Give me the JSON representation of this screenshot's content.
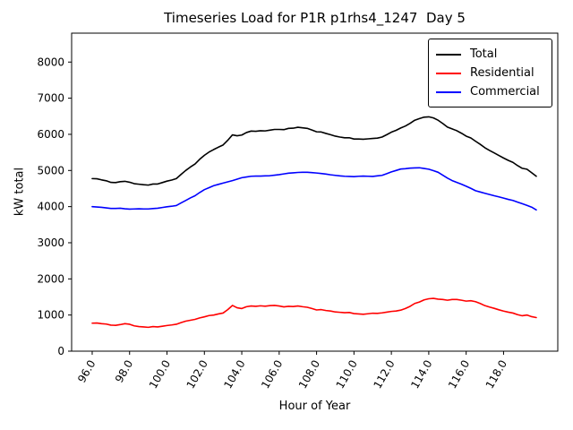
{
  "chart_data": {
    "type": "line",
    "title": "Timeseries Load for P1R p1rhs4_1247  Day 5",
    "xlabel": "Hour of Year",
    "ylabel": "kW total",
    "xlim": [
      94.9,
      120.9
    ],
    "ylim": [
      0,
      8800
    ],
    "grid": false,
    "legend_position": "upper right",
    "xticks": {
      "values": [
        96,
        98,
        100,
        102,
        104,
        106,
        108,
        110,
        112,
        114,
        116,
        118
      ],
      "labels": [
        "96.0",
        "98.0",
        "100.0",
        "102.0",
        "104.0",
        "106.0",
        "108.0",
        "110.0",
        "112.0",
        "114.0",
        "116.0",
        "118.0"
      ]
    },
    "yticks": {
      "values": [
        0,
        1000,
        2000,
        3000,
        4000,
        5000,
        6000,
        7000,
        8000
      ],
      "labels": [
        "0",
        "1000",
        "2000",
        "3000",
        "4000",
        "5000",
        "6000",
        "7000",
        "8000"
      ]
    },
    "x": [
      96.0,
      96.25,
      96.5,
      96.75,
      97.0,
      97.25,
      97.5,
      97.75,
      98.0,
      98.25,
      98.5,
      98.75,
      99.0,
      99.25,
      99.5,
      99.75,
      100.0,
      100.25,
      100.5,
      100.75,
      101.0,
      101.25,
      101.5,
      101.75,
      102.0,
      102.25,
      102.5,
      102.75,
      103.0,
      103.25,
      103.5,
      103.75,
      104.0,
      104.25,
      104.5,
      104.75,
      105.0,
      105.25,
      105.5,
      105.75,
      106.0,
      106.25,
      106.5,
      106.75,
      107.0,
      107.25,
      107.5,
      107.75,
      108.0,
      108.25,
      108.5,
      108.75,
      109.0,
      109.25,
      109.5,
      109.75,
      110.0,
      110.25,
      110.5,
      110.75,
      111.0,
      111.25,
      111.5,
      111.75,
      112.0,
      112.25,
      112.5,
      112.75,
      113.0,
      113.25,
      113.5,
      113.75,
      114.0,
      114.25,
      114.5,
      114.75,
      115.0,
      115.25,
      115.5,
      115.75,
      116.0,
      116.25,
      116.5,
      116.75,
      117.0,
      117.25,
      117.5,
      117.75,
      118.0,
      118.25,
      118.5,
      118.75,
      119.0,
      119.25,
      119.5,
      119.75
    ],
    "series": [
      {
        "name": "Total",
        "color": "#000000",
        "values": [
          4775,
          4770,
          4740,
          4715,
          4670,
          4665,
          4690,
          4700,
          4675,
          4635,
          4620,
          4605,
          4595,
          4625,
          4625,
          4665,
          4705,
          4735,
          4775,
          4890,
          5000,
          5095,
          5180,
          5310,
          5420,
          5510,
          5580,
          5645,
          5705,
          5835,
          5985,
          5960,
          5980,
          6050,
          6090,
          6085,
          6100,
          6095,
          6115,
          6135,
          6135,
          6130,
          6165,
          6170,
          6195,
          6180,
          6165,
          6120,
          6070,
          6065,
          6025,
          5990,
          5950,
          5925,
          5905,
          5905,
          5870,
          5870,
          5865,
          5875,
          5885,
          5895,
          5925,
          5990,
          6060,
          6110,
          6175,
          6230,
          6305,
          6390,
          6435,
          6475,
          6485,
          6455,
          6390,
          6300,
          6200,
          6150,
          6100,
          6030,
          5950,
          5900,
          5810,
          5725,
          5630,
          5555,
          5485,
          5415,
          5345,
          5280,
          5225,
          5135,
          5060,
          5035,
          4940,
          4840
        ]
      },
      {
        "name": "Residential",
        "color": "#ff0000",
        "values": [
          775,
          780,
          760,
          750,
          720,
          715,
          735,
          760,
          745,
          700,
          680,
          670,
          660,
          680,
          670,
          690,
          710,
          725,
          745,
          790,
          830,
          855,
          880,
          920,
          950,
          985,
          1000,
          1030,
          1055,
          1150,
          1265,
          1200,
          1180,
          1230,
          1250,
          1240,
          1255,
          1245,
          1260,
          1265,
          1250,
          1225,
          1240,
          1235,
          1250,
          1230,
          1215,
          1180,
          1140,
          1150,
          1125,
          1110,
          1085,
          1075,
          1065,
          1070,
          1040,
          1030,
          1020,
          1035,
          1050,
          1045,
          1060,
          1080,
          1100,
          1110,
          1135,
          1180,
          1240,
          1320,
          1360,
          1420,
          1450,
          1460,
          1440,
          1430,
          1410,
          1430,
          1430,
          1410,
          1385,
          1395,
          1370,
          1320,
          1260,
          1220,
          1185,
          1145,
          1110,
          1080,
          1055,
          1010,
          980,
          1000,
          955,
          930
        ]
      },
      {
        "name": "Commercial",
        "color": "#0000ff",
        "values": [
          4000,
          3990,
          3980,
          3965,
          3950,
          3950,
          3955,
          3940,
          3930,
          3935,
          3940,
          3935,
          3935,
          3945,
          3955,
          3975,
          3995,
          4010,
          4030,
          4100,
          4170,
          4240,
          4300,
          4390,
          4470,
          4525,
          4580,
          4615,
          4650,
          4685,
          4720,
          4760,
          4800,
          4820,
          4840,
          4845,
          4845,
          4850,
          4855,
          4870,
          4885,
          4905,
          4925,
          4935,
          4945,
          4950,
          4950,
          4940,
          4930,
          4915,
          4900,
          4880,
          4865,
          4850,
          4840,
          4835,
          4830,
          4840,
          4845,
          4840,
          4835,
          4850,
          4865,
          4910,
          4960,
          5000,
          5040,
          5050,
          5065,
          5070,
          5075,
          5055,
          5035,
          4995,
          4950,
          4870,
          4790,
          4720,
          4670,
          4620,
          4565,
          4505,
          4440,
          4405,
          4370,
          4335,
          4300,
          4270,
          4235,
          4200,
          4170,
          4125,
          4080,
          4035,
          3985,
          3910
        ]
      }
    ]
  }
}
